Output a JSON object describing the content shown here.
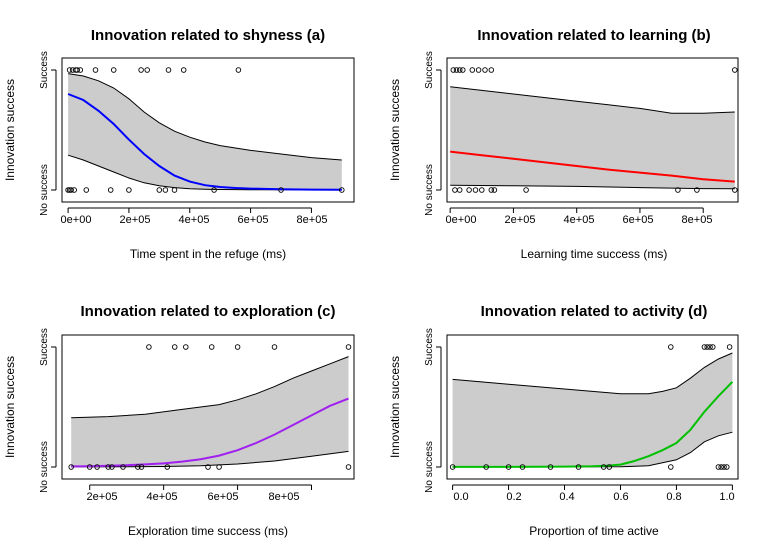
{
  "chart_data": [
    {
      "type": "line",
      "title": "Innovation related to shyness (a)",
      "xlabel": "Time spent in the refuge (ms)",
      "ylabel": "Innovation success",
      "xlim": [
        -20000,
        940000
      ],
      "ylim": [
        0,
        1
      ],
      "xticks": [
        0,
        200000,
        400000,
        600000,
        800000
      ],
      "xtick_labels": [
        "0e+00",
        "2e+05",
        "4e+05",
        "6e+05",
        "8e+05"
      ],
      "yticks": [
        0,
        1
      ],
      "ytick_labels": [
        "No success",
        "Success"
      ],
      "fit_color": "#0000ff",
      "fit": {
        "x": [
          0,
          50000,
          100000,
          150000,
          200000,
          250000,
          300000,
          350000,
          400000,
          450000,
          500000,
          550000,
          600000,
          700000,
          800000,
          900000
        ],
        "y": [
          0.8,
          0.75,
          0.66,
          0.55,
          0.42,
          0.3,
          0.2,
          0.12,
          0.07,
          0.04,
          0.025,
          0.017,
          0.012,
          0.006,
          0.003,
          0.002
        ]
      },
      "upper": {
        "x": [
          0,
          50000,
          100000,
          150000,
          200000,
          250000,
          300000,
          350000,
          400000,
          450000,
          500000,
          600000,
          700000,
          800000,
          900000
        ],
        "y": [
          0.97,
          0.95,
          0.91,
          0.85,
          0.76,
          0.65,
          0.56,
          0.49,
          0.44,
          0.4,
          0.37,
          0.33,
          0.3,
          0.27,
          0.25
        ]
      },
      "lower": {
        "x": [
          0,
          50000,
          100000,
          150000,
          200000,
          250000,
          300000,
          350000,
          400000,
          450000,
          500000,
          600000,
          900000
        ],
        "y": [
          0.29,
          0.25,
          0.2,
          0.15,
          0.1,
          0.06,
          0.035,
          0.02,
          0.01,
          0.006,
          0.004,
          0.002,
          0.001
        ]
      },
      "points": {
        "success_x": [
          5000,
          15000,
          25000,
          30000,
          40000,
          90000,
          150000,
          240000,
          260000,
          330000,
          380000,
          560000
        ],
        "failure_x": [
          0,
          5000,
          10000,
          20000,
          60000,
          140000,
          200000,
          300000,
          320000,
          350000,
          480000,
          700000,
          900000
        ]
      }
    },
    {
      "type": "line",
      "title": "Innovation related to learning (b)",
      "xlabel": "Learning time success (ms)",
      "ylabel": "Innovation success",
      "xlim": [
        -10000,
        910000
      ],
      "ylim": [
        0,
        1
      ],
      "xticks": [
        0,
        200000,
        400000,
        600000,
        800000
      ],
      "xtick_labels": [
        "0e+00",
        "2e+05",
        "4e+05",
        "6e+05",
        "8e+05"
      ],
      "yticks": [
        0,
        1
      ],
      "ytick_labels": [
        "No success",
        "Success"
      ],
      "fit_color": "#ff0000",
      "fit": {
        "x": [
          0,
          100000,
          200000,
          300000,
          400000,
          500000,
          600000,
          700000,
          800000,
          900000
        ],
        "y": [
          0.32,
          0.29,
          0.26,
          0.23,
          0.2,
          0.17,
          0.145,
          0.12,
          0.09,
          0.07
        ]
      },
      "upper": {
        "x": [
          0,
          100000,
          200000,
          300000,
          400000,
          500000,
          600000,
          700000,
          800000,
          900000
        ],
        "y": [
          0.86,
          0.83,
          0.8,
          0.77,
          0.74,
          0.71,
          0.68,
          0.64,
          0.64,
          0.65
        ]
      },
      "lower": {
        "x": [
          0,
          200000,
          400000,
          600000,
          800000,
          900000
        ],
        "y": [
          0.04,
          0.035,
          0.03,
          0.02,
          0.012,
          0.01
        ]
      },
      "points": {
        "success_x": [
          10000,
          20000,
          30000,
          40000,
          70000,
          90000,
          110000,
          130000,
          900000
        ],
        "failure_x": [
          15000,
          30000,
          60000,
          80000,
          100000,
          130000,
          140000,
          240000,
          720000,
          780000,
          900000
        ]
      }
    },
    {
      "type": "line",
      "title": "Innovation related to exploration (c)",
      "xlabel": "Exploration time success (ms)",
      "ylabel": "Innovation success",
      "xlim": [
        125000,
        915000
      ],
      "ylim": [
        0,
        1
      ],
      "xticks": [
        200000,
        400000,
        600000,
        800000
      ],
      "xtick_labels": [
        "2e+05",
        "4e+05",
        "6e+05",
        "8e+05"
      ],
      "yticks": [
        0,
        1
      ],
      "ytick_labels": [
        "No success",
        "Success"
      ],
      "fit_color": "#a020f0",
      "fit": {
        "x": [
          150000,
          200000,
          250000,
          300000,
          350000,
          400000,
          450000,
          500000,
          550000,
          600000,
          650000,
          700000,
          750000,
          800000,
          850000,
          900000
        ],
        "y": [
          0.005,
          0.007,
          0.01,
          0.015,
          0.022,
          0.03,
          0.045,
          0.065,
          0.095,
          0.14,
          0.2,
          0.27,
          0.35,
          0.43,
          0.51,
          0.57
        ]
      },
      "upper": {
        "x": [
          150000,
          250000,
          350000,
          450000,
          550000,
          600000,
          650000,
          700000,
          750000,
          800000,
          850000,
          900000
        ],
        "y": [
          0.41,
          0.42,
          0.44,
          0.48,
          0.52,
          0.56,
          0.61,
          0.67,
          0.74,
          0.8,
          0.86,
          0.92
        ]
      },
      "lower": {
        "x": [
          150000,
          300000,
          400000,
          500000,
          600000,
          700000,
          800000,
          900000
        ],
        "y": [
          0.001,
          0.002,
          0.004,
          0.01,
          0.025,
          0.05,
          0.09,
          0.13
        ]
      },
      "points": {
        "success_x": [
          360000,
          430000,
          460000,
          530000,
          600000,
          700000,
          900000
        ],
        "failure_x": [
          150000,
          200000,
          220000,
          250000,
          260000,
          290000,
          330000,
          340000,
          410000,
          520000,
          550000,
          900000
        ]
      }
    },
    {
      "type": "line",
      "title": "Innovation related to activity (d)",
      "xlabel": "Proportion of time active",
      "ylabel": "Innovation success",
      "xlim": [
        -0.02,
        1.02
      ],
      "ylim": [
        0,
        1
      ],
      "xticks": [
        0,
        0.2,
        0.4,
        0.6,
        0.8,
        1
      ],
      "xtick_labels": [
        "0.0",
        "0.2",
        "0.4",
        "0.6",
        "0.8",
        "1.0"
      ],
      "yticks": [
        0,
        1
      ],
      "ytick_labels": [
        "No success",
        "Success"
      ],
      "fit_color": "#00c000",
      "fit": {
        "x": [
          0,
          0.1,
          0.2,
          0.3,
          0.4,
          0.5,
          0.55,
          0.6,
          0.65,
          0.7,
          0.75,
          0.8,
          0.85,
          0.9,
          0.95,
          1.0
        ],
        "y": [
          0.001,
          0.001,
          0.001,
          0.002,
          0.003,
          0.006,
          0.01,
          0.02,
          0.05,
          0.09,
          0.14,
          0.2,
          0.31,
          0.46,
          0.59,
          0.71
        ]
      },
      "upper": {
        "x": [
          0,
          0.2,
          0.4,
          0.6,
          0.7,
          0.75,
          0.8,
          0.85,
          0.9,
          0.95,
          1.0
        ],
        "y": [
          0.73,
          0.69,
          0.65,
          0.61,
          0.61,
          0.63,
          0.66,
          0.74,
          0.83,
          0.9,
          0.95
        ]
      },
      "lower": {
        "x": [
          0,
          0.6,
          0.7,
          0.8,
          0.85,
          0.9,
          0.95,
          1.0
        ],
        "y": [
          0.001,
          0.002,
          0.01,
          0.06,
          0.12,
          0.21,
          0.26,
          0.29
        ]
      },
      "points": {
        "success_x": [
          0.78,
          0.9,
          0.91,
          0.92,
          0.93,
          0.99
        ],
        "failure_x": [
          0.0,
          0.12,
          0.2,
          0.25,
          0.35,
          0.45,
          0.54,
          0.56,
          0.78,
          0.95,
          0.96,
          0.97,
          0.98
        ]
      }
    }
  ]
}
